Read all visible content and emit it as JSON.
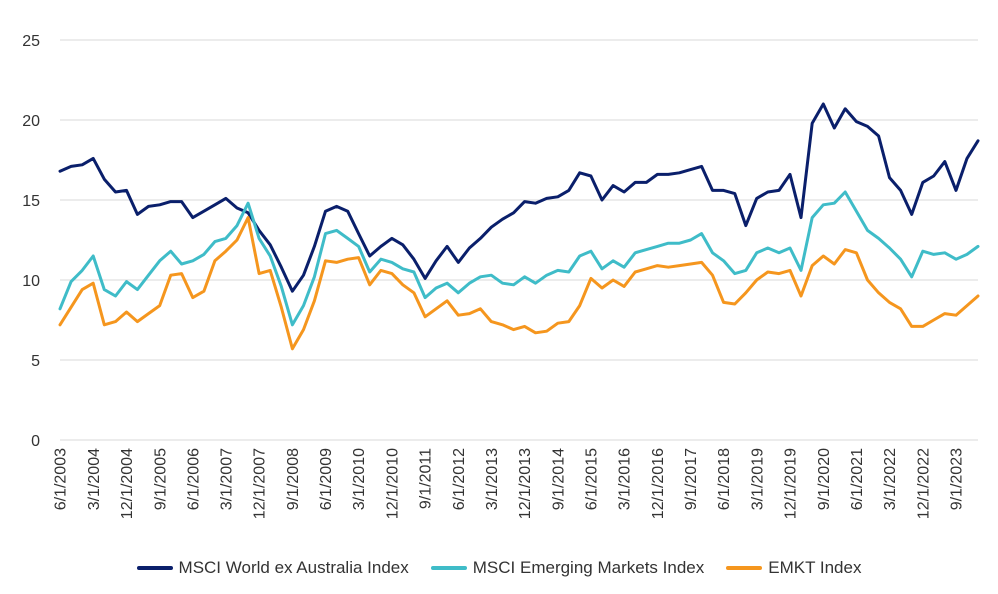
{
  "chart_data": {
    "type": "line",
    "title": "",
    "xlabel": "",
    "ylabel": "",
    "ylim": [
      0,
      25
    ],
    "yticks": [
      "0",
      "5",
      "10",
      "15",
      "20",
      "25"
    ],
    "xticks": [
      "6/1/2003",
      "3/1/2004",
      "12/1/2004",
      "9/1/2005",
      "6/1/2006",
      "3/1/2007",
      "12/1/2007",
      "9/1/2008",
      "6/1/2009",
      "3/1/2010",
      "12/1/2010",
      "9/1/2011",
      "6/1/2012",
      "3/1/2013",
      "12/1/2013",
      "9/1/2014",
      "6/1/2015",
      "3/1/2016",
      "12/1/2016",
      "9/1/2017",
      "6/1/2018",
      "3/1/2019",
      "12/1/2019",
      "9/1/2020",
      "6/1/2021",
      "3/1/2022",
      "12/1/2022",
      "9/1/2023"
    ],
    "x_start": "6/1/2003",
    "x_end": "3/1/2024",
    "grid": "horizontal",
    "legend_position": "bottom",
    "series": [
      {
        "name": "MSCI World ex Australia Index",
        "color": "#0a1f6b",
        "points": [
          [
            "6/1/2003",
            16.8
          ],
          [
            "9/1/2003",
            17.1
          ],
          [
            "12/1/2003",
            17.2
          ],
          [
            "3/1/2004",
            17.6
          ],
          [
            "6/1/2004",
            16.3
          ],
          [
            "9/1/2004",
            15.5
          ],
          [
            "12/1/2004",
            15.6
          ],
          [
            "3/1/2005",
            14.1
          ],
          [
            "6/1/2005",
            14.6
          ],
          [
            "9/1/2005",
            14.7
          ],
          [
            "12/1/2005",
            14.9
          ],
          [
            "3/1/2006",
            14.9
          ],
          [
            "6/1/2006",
            13.9
          ],
          [
            "9/1/2006",
            14.3
          ],
          [
            "12/1/2006",
            14.7
          ],
          [
            "3/1/2007",
            15.1
          ],
          [
            "6/1/2007",
            14.5
          ],
          [
            "9/1/2007",
            14.2
          ],
          [
            "12/1/2007",
            13.1
          ],
          [
            "3/1/2008",
            12.2
          ],
          [
            "6/1/2008",
            10.8
          ],
          [
            "9/1/2008",
            9.3
          ],
          [
            "12/1/2008",
            10.3
          ],
          [
            "3/1/2009",
            12.1
          ],
          [
            "6/1/2009",
            14.3
          ],
          [
            "9/1/2009",
            14.6
          ],
          [
            "12/1/2009",
            14.3
          ],
          [
            "3/1/2010",
            12.9
          ],
          [
            "6/1/2010",
            11.5
          ],
          [
            "9/1/2010",
            12.1
          ],
          [
            "12/1/2010",
            12.6
          ],
          [
            "3/1/2011",
            12.2
          ],
          [
            "6/1/2011",
            11.3
          ],
          [
            "9/1/2011",
            10.1
          ],
          [
            "12/1/2011",
            11.2
          ],
          [
            "3/1/2012",
            12.1
          ],
          [
            "6/1/2012",
            11.1
          ],
          [
            "9/1/2012",
            12.0
          ],
          [
            "12/1/2012",
            12.6
          ],
          [
            "3/1/2013",
            13.3
          ],
          [
            "6/1/2013",
            13.8
          ],
          [
            "9/1/2013",
            14.2
          ],
          [
            "12/1/2013",
            14.9
          ],
          [
            "3/1/2014",
            14.8
          ],
          [
            "6/1/2014",
            15.1
          ],
          [
            "9/1/2014",
            15.2
          ],
          [
            "12/1/2014",
            15.6
          ],
          [
            "3/1/2015",
            16.7
          ],
          [
            "6/1/2015",
            16.5
          ],
          [
            "9/1/2015",
            15.0
          ],
          [
            "12/1/2015",
            15.9
          ],
          [
            "3/1/2016",
            15.5
          ],
          [
            "6/1/2016",
            16.1
          ],
          [
            "9/1/2016",
            16.1
          ],
          [
            "12/1/2016",
            16.6
          ],
          [
            "3/1/2017",
            16.6
          ],
          [
            "6/1/2017",
            16.7
          ],
          [
            "9/1/2017",
            16.9
          ],
          [
            "12/1/2017",
            17.1
          ],
          [
            "3/1/2018",
            15.6
          ],
          [
            "6/1/2018",
            15.6
          ],
          [
            "9/1/2018",
            15.4
          ],
          [
            "12/1/2018",
            13.4
          ],
          [
            "3/1/2019",
            15.1
          ],
          [
            "6/1/2019",
            15.5
          ],
          [
            "9/1/2019",
            15.6
          ],
          [
            "12/1/2019",
            16.6
          ],
          [
            "3/1/2020",
            13.9
          ],
          [
            "6/1/2020",
            19.8
          ],
          [
            "9/1/2020",
            21.0
          ],
          [
            "12/1/2020",
            19.5
          ],
          [
            "3/1/2021",
            20.7
          ],
          [
            "6/1/2021",
            19.9
          ],
          [
            "9/1/2021",
            19.6
          ],
          [
            "12/1/2021",
            19.0
          ],
          [
            "3/1/2022",
            16.4
          ],
          [
            "6/1/2022",
            15.6
          ],
          [
            "9/1/2022",
            14.1
          ],
          [
            "12/1/2022",
            16.1
          ],
          [
            "3/1/2023",
            16.5
          ],
          [
            "6/1/2023",
            17.4
          ],
          [
            "9/1/2023",
            15.6
          ],
          [
            "12/1/2023",
            17.6
          ],
          [
            "3/1/2024",
            18.7
          ]
        ]
      },
      {
        "name": "MSCI Emerging Markets Index",
        "color": "#3fbcc8",
        "points": [
          [
            "6/1/2003",
            8.2
          ],
          [
            "9/1/2003",
            9.9
          ],
          [
            "12/1/2003",
            10.6
          ],
          [
            "3/1/2004",
            11.5
          ],
          [
            "6/1/2004",
            9.4
          ],
          [
            "9/1/2004",
            9.0
          ],
          [
            "12/1/2004",
            9.9
          ],
          [
            "3/1/2005",
            9.4
          ],
          [
            "6/1/2005",
            10.3
          ],
          [
            "9/1/2005",
            11.2
          ],
          [
            "12/1/2005",
            11.8
          ],
          [
            "3/1/2006",
            11.0
          ],
          [
            "6/1/2006",
            11.2
          ],
          [
            "9/1/2006",
            11.6
          ],
          [
            "12/1/2006",
            12.4
          ],
          [
            "3/1/2007",
            12.6
          ],
          [
            "6/1/2007",
            13.4
          ],
          [
            "9/1/2007",
            14.8
          ],
          [
            "12/1/2007",
            12.6
          ],
          [
            "3/1/2008",
            11.5
          ],
          [
            "6/1/2008",
            9.6
          ],
          [
            "9/1/2008",
            7.2
          ],
          [
            "12/1/2008",
            8.4
          ],
          [
            "3/1/2009",
            10.2
          ],
          [
            "6/1/2009",
            12.9
          ],
          [
            "9/1/2009",
            13.1
          ],
          [
            "12/1/2009",
            12.6
          ],
          [
            "3/1/2010",
            12.1
          ],
          [
            "6/1/2010",
            10.5
          ],
          [
            "9/1/2010",
            11.3
          ],
          [
            "12/1/2010",
            11.1
          ],
          [
            "3/1/2011",
            10.7
          ],
          [
            "6/1/2011",
            10.5
          ],
          [
            "9/1/2011",
            8.9
          ],
          [
            "12/1/2011",
            9.5
          ],
          [
            "3/1/2012",
            9.8
          ],
          [
            "6/1/2012",
            9.2
          ],
          [
            "9/1/2012",
            9.8
          ],
          [
            "12/1/2012",
            10.2
          ],
          [
            "3/1/2013",
            10.3
          ],
          [
            "6/1/2013",
            9.8
          ],
          [
            "9/1/2013",
            9.7
          ],
          [
            "12/1/2013",
            10.2
          ],
          [
            "3/1/2014",
            9.8
          ],
          [
            "6/1/2014",
            10.3
          ],
          [
            "9/1/2014",
            10.6
          ],
          [
            "12/1/2014",
            10.5
          ],
          [
            "3/1/2015",
            11.5
          ],
          [
            "6/1/2015",
            11.8
          ],
          [
            "9/1/2015",
            10.7
          ],
          [
            "12/1/2015",
            11.2
          ],
          [
            "3/1/2016",
            10.8
          ],
          [
            "6/1/2016",
            11.7
          ],
          [
            "9/1/2016",
            11.9
          ],
          [
            "12/1/2016",
            12.1
          ],
          [
            "3/1/2017",
            12.3
          ],
          [
            "6/1/2017",
            12.3
          ],
          [
            "9/1/2017",
            12.5
          ],
          [
            "12/1/2017",
            12.9
          ],
          [
            "3/1/2018",
            11.7
          ],
          [
            "6/1/2018",
            11.2
          ],
          [
            "9/1/2018",
            10.4
          ],
          [
            "12/1/2018",
            10.6
          ],
          [
            "3/1/2019",
            11.7
          ],
          [
            "6/1/2019",
            12.0
          ],
          [
            "9/1/2019",
            11.7
          ],
          [
            "12/1/2019",
            12.0
          ],
          [
            "3/1/2020",
            10.6
          ],
          [
            "6/1/2020",
            13.9
          ],
          [
            "9/1/2020",
            14.7
          ],
          [
            "12/1/2020",
            14.8
          ],
          [
            "3/1/2021",
            15.5
          ],
          [
            "6/1/2021",
            14.3
          ],
          [
            "9/1/2021",
            13.1
          ],
          [
            "12/1/2021",
            12.6
          ],
          [
            "3/1/2022",
            12.0
          ],
          [
            "6/1/2022",
            11.3
          ],
          [
            "9/1/2022",
            10.2
          ],
          [
            "12/1/2022",
            11.8
          ],
          [
            "3/1/2023",
            11.6
          ],
          [
            "6/1/2023",
            11.7
          ],
          [
            "9/1/2023",
            11.3
          ],
          [
            "12/1/2023",
            11.6
          ],
          [
            "3/1/2024",
            12.1
          ]
        ]
      },
      {
        "name": "EMKT Index",
        "color": "#f5961e",
        "points": [
          [
            "6/1/2003",
            7.2
          ],
          [
            "9/1/2003",
            8.3
          ],
          [
            "12/1/2003",
            9.4
          ],
          [
            "3/1/2004",
            9.8
          ],
          [
            "6/1/2004",
            7.2
          ],
          [
            "9/1/2004",
            7.4
          ],
          [
            "12/1/2004",
            8.0
          ],
          [
            "3/1/2005",
            7.4
          ],
          [
            "6/1/2005",
            7.9
          ],
          [
            "9/1/2005",
            8.4
          ],
          [
            "12/1/2005",
            10.3
          ],
          [
            "3/1/2006",
            10.4
          ],
          [
            "6/1/2006",
            8.9
          ],
          [
            "9/1/2006",
            9.3
          ],
          [
            "12/1/2006",
            11.2
          ],
          [
            "3/1/2007",
            11.8
          ],
          [
            "6/1/2007",
            12.5
          ],
          [
            "9/1/2007",
            13.9
          ],
          [
            "12/1/2007",
            10.4
          ],
          [
            "3/1/2008",
            10.6
          ],
          [
            "6/1/2008",
            8.3
          ],
          [
            "9/1/2008",
            5.7
          ],
          [
            "12/1/2008",
            6.9
          ],
          [
            "3/1/2009",
            8.7
          ],
          [
            "6/1/2009",
            11.2
          ],
          [
            "9/1/2009",
            11.1
          ],
          [
            "12/1/2009",
            11.3
          ],
          [
            "3/1/2010",
            11.4
          ],
          [
            "6/1/2010",
            9.7
          ],
          [
            "9/1/2010",
            10.6
          ],
          [
            "12/1/2010",
            10.4
          ],
          [
            "3/1/2011",
            9.7
          ],
          [
            "6/1/2011",
            9.2
          ],
          [
            "9/1/2011",
            7.7
          ],
          [
            "12/1/2011",
            8.2
          ],
          [
            "3/1/2012",
            8.7
          ],
          [
            "6/1/2012",
            7.8
          ],
          [
            "9/1/2012",
            7.9
          ],
          [
            "12/1/2012",
            8.2
          ],
          [
            "3/1/2013",
            7.4
          ],
          [
            "6/1/2013",
            7.2
          ],
          [
            "9/1/2013",
            6.9
          ],
          [
            "12/1/2013",
            7.1
          ],
          [
            "3/1/2014",
            6.7
          ],
          [
            "6/1/2014",
            6.8
          ],
          [
            "9/1/2014",
            7.3
          ],
          [
            "12/1/2014",
            7.4
          ],
          [
            "3/1/2015",
            8.4
          ],
          [
            "6/1/2015",
            10.1
          ],
          [
            "9/1/2015",
            9.5
          ],
          [
            "12/1/2015",
            10.0
          ],
          [
            "3/1/2016",
            9.6
          ],
          [
            "6/1/2016",
            10.5
          ],
          [
            "9/1/2016",
            10.7
          ],
          [
            "12/1/2016",
            10.9
          ],
          [
            "3/1/2017",
            10.8
          ],
          [
            "6/1/2017",
            10.9
          ],
          [
            "9/1/2017",
            11.0
          ],
          [
            "12/1/2017",
            11.1
          ],
          [
            "3/1/2018",
            10.3
          ],
          [
            "6/1/2018",
            8.6
          ],
          [
            "9/1/2018",
            8.5
          ],
          [
            "12/1/2018",
            9.2
          ],
          [
            "3/1/2019",
            10.0
          ],
          [
            "6/1/2019",
            10.5
          ],
          [
            "9/1/2019",
            10.4
          ],
          [
            "12/1/2019",
            10.6
          ],
          [
            "3/1/2020",
            9.0
          ],
          [
            "6/1/2020",
            10.9
          ],
          [
            "9/1/2020",
            11.5
          ],
          [
            "12/1/2020",
            11.0
          ],
          [
            "3/1/2021",
            11.9
          ],
          [
            "6/1/2021",
            11.7
          ],
          [
            "9/1/2021",
            10.0
          ],
          [
            "12/1/2021",
            9.2
          ],
          [
            "3/1/2022",
            8.6
          ],
          [
            "6/1/2022",
            8.2
          ],
          [
            "9/1/2022",
            7.1
          ],
          [
            "12/1/2022",
            7.1
          ],
          [
            "3/1/2023",
            7.5
          ],
          [
            "6/1/2023",
            7.9
          ],
          [
            "9/1/2023",
            7.8
          ],
          [
            "12/1/2023",
            8.4
          ],
          [
            "3/1/2024",
            9.0
          ]
        ]
      }
    ]
  }
}
